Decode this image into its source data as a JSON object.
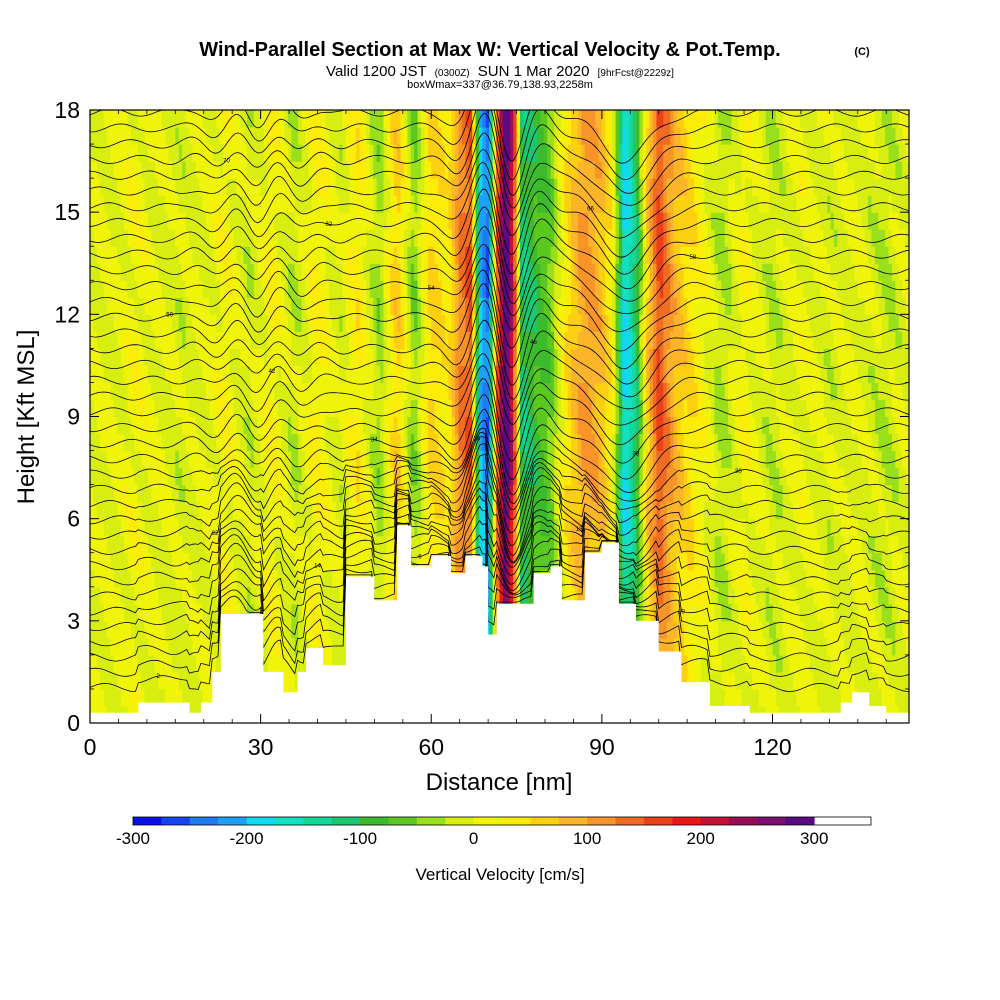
{
  "title": {
    "main": "Wind-Parallel Section at Max W: Vertical Velocity & Pot.Temp.",
    "copyright": "(C)",
    "sub_prefix": "Valid 1200 JST",
    "sub_utc": "(0300Z)",
    "sub_date": "SUN 1 Mar 2020",
    "sub_fcst": "[9hrFcst@2229z]",
    "sub2": "boxWmax=337@36.79,138.93,2258m"
  },
  "chart_data": {
    "type": "heatmap",
    "xlabel": "Distance [nm]",
    "ylabel": "Height [Kft MSL]",
    "xlim": [
      0,
      144
    ],
    "ylim": [
      0,
      18
    ],
    "x_ticks": [
      0,
      30,
      60,
      90,
      120
    ],
    "x_tick_labels": [
      "0",
      "30",
      "60",
      "90",
      "120"
    ],
    "y_ticks": [
      0,
      3,
      6,
      9,
      12,
      15,
      18
    ],
    "y_tick_labels": [
      "0",
      "3",
      "6",
      "9",
      "12",
      "15",
      "18"
    ],
    "colorbar": {
      "title": "Vertical Velocity [cm/s]",
      "min": -300,
      "max": 350,
      "step": 25,
      "tick_values": [
        -300,
        -200,
        -100,
        0,
        100,
        200,
        300
      ],
      "tick_labels": [
        "-300",
        "-200",
        "-100",
        "0",
        "100",
        "200",
        "300"
      ],
      "colors": [
        "#0a10e6",
        "#1446f0",
        "#1e7cf2",
        "#1ea0f8",
        "#10d8f0",
        "#12e0c0",
        "#14d898",
        "#1ac870",
        "#3cbc2c",
        "#5ac81e",
        "#9ae01a",
        "#d8ee10",
        "#f0f408",
        "#fcec08",
        "#fcd010",
        "#fcb428",
        "#f89428",
        "#f06c20",
        "#ec4018",
        "#e81818",
        "#c41034",
        "#9a0c58",
        "#7c0c70",
        "#5a0a82"
      ]
    },
    "velocity_columns": [
      {
        "x": 0,
        "w": 0
      },
      {
        "x": 4,
        "w": 0
      },
      {
        "x": 8,
        "w": 15
      },
      {
        "x": 12,
        "w": 0
      },
      {
        "x": 16,
        "w": -10
      },
      {
        "x": 20,
        "w": 0
      },
      {
        "x": 24,
        "w": 20
      },
      {
        "x": 28,
        "w": -15
      },
      {
        "x": 32,
        "w": 25
      },
      {
        "x": 36,
        "w": -20
      },
      {
        "x": 40,
        "w": 30
      },
      {
        "x": 44,
        "w": -10
      },
      {
        "x": 47,
        "w": 40
      },
      {
        "x": 51,
        "w": -40
      },
      {
        "x": 54,
        "w": 70
      },
      {
        "x": 57,
        "w": -50
      },
      {
        "x": 60,
        "w": 60
      },
      {
        "x": 63,
        "w": 30
      },
      {
        "x": 65,
        "w": 120
      },
      {
        "x": 67,
        "w": 150
      },
      {
        "x": 68.5,
        "w": -200
      },
      {
        "x": 70,
        "w": -240
      },
      {
        "x": 71.5,
        "w": 120
      },
      {
        "x": 73,
        "w": 330
      },
      {
        "x": 74.5,
        "w": 180
      },
      {
        "x": 76,
        "w": -120
      },
      {
        "x": 78,
        "w": -90
      },
      {
        "x": 81,
        "w": -60
      },
      {
        "x": 84,
        "w": 50
      },
      {
        "x": 87,
        "w": 110
      },
      {
        "x": 90,
        "w": 80
      },
      {
        "x": 92,
        "w": 20
      },
      {
        "x": 94,
        "w": -190
      },
      {
        "x": 96,
        "w": -120
      },
      {
        "x": 98,
        "w": 60
      },
      {
        "x": 100,
        "w": 160
      },
      {
        "x": 103,
        "w": 80
      },
      {
        "x": 107,
        "w": 30
      },
      {
        "x": 111,
        "w": -30
      },
      {
        "x": 115,
        "w": 20
      },
      {
        "x": 120,
        "w": -20
      },
      {
        "x": 125,
        "w": 10
      },
      {
        "x": 130,
        "w": -10
      },
      {
        "x": 135,
        "w": 0
      },
      {
        "x": 140,
        "w": -20
      },
      {
        "x": 144,
        "w": 0
      }
    ],
    "terrain": [
      [
        0,
        0.3
      ],
      [
        8.5,
        0.3
      ],
      [
        8.5,
        0.6
      ],
      [
        17.5,
        0.6
      ],
      [
        17.5,
        0.3
      ],
      [
        19.5,
        0.3
      ],
      [
        19.5,
        0.6
      ],
      [
        21.5,
        0.6
      ],
      [
        21.5,
        1.5
      ],
      [
        23,
        1.5
      ],
      [
        23,
        3.2
      ],
      [
        30.5,
        3.2
      ],
      [
        30.5,
        1.5
      ],
      [
        34,
        1.5
      ],
      [
        34,
        0.9
      ],
      [
        36.5,
        0.9
      ],
      [
        36.5,
        1.5
      ],
      [
        38,
        1.5
      ],
      [
        38,
        2.2
      ],
      [
        41,
        2.2
      ],
      [
        41,
        1.7
      ],
      [
        45,
        1.7
      ],
      [
        45,
        4.3
      ],
      [
        50,
        4.3
      ],
      [
        50,
        3.6
      ],
      [
        54,
        3.6
      ],
      [
        54,
        5.8
      ],
      [
        56.5,
        5.8
      ],
      [
        56.5,
        4.6
      ],
      [
        60,
        4.6
      ],
      [
        60,
        4.9
      ],
      [
        63.5,
        4.9
      ],
      [
        63.5,
        4.4
      ],
      [
        66,
        4.4
      ],
      [
        66,
        4.9
      ],
      [
        69,
        4.9
      ],
      [
        69,
        4.6
      ],
      [
        70,
        4.6
      ],
      [
        70,
        2.6
      ],
      [
        71.5,
        2.6
      ],
      [
        71.5,
        3.5
      ],
      [
        78,
        3.5
      ],
      [
        78,
        4.4
      ],
      [
        81,
        4.4
      ],
      [
        81,
        4.6
      ],
      [
        83,
        4.6
      ],
      [
        83,
        3.6
      ],
      [
        87,
        3.6
      ],
      [
        87,
        5.0
      ],
      [
        90,
        5.0
      ],
      [
        90,
        5.3
      ],
      [
        93,
        5.3
      ],
      [
        93,
        3.5
      ],
      [
        96,
        3.5
      ],
      [
        96,
        3.0
      ],
      [
        100,
        3.0
      ],
      [
        100,
        2.1
      ],
      [
        104,
        2.1
      ],
      [
        104,
        1.2
      ],
      [
        109,
        1.2
      ],
      [
        109,
        0.5
      ],
      [
        116,
        0.5
      ],
      [
        116,
        0.3
      ],
      [
        132,
        0.3
      ],
      [
        132,
        0.6
      ],
      [
        134,
        0.6
      ],
      [
        134,
        0.9
      ],
      [
        137,
        0.9
      ],
      [
        137,
        0.5
      ],
      [
        140,
        0.5
      ],
      [
        140,
        0.3
      ],
      [
        144,
        0.3
      ]
    ],
    "isentropes": {
      "count": 38,
      "label_values": [
        "2",
        "6",
        "10",
        "14",
        "18",
        "22",
        "26",
        "30",
        "34",
        "38",
        "42",
        "46",
        "50",
        "54",
        "58",
        "62",
        "66",
        "70",
        "74",
        "78",
        "82",
        "86",
        "90",
        "94",
        "98"
      ]
    }
  }
}
